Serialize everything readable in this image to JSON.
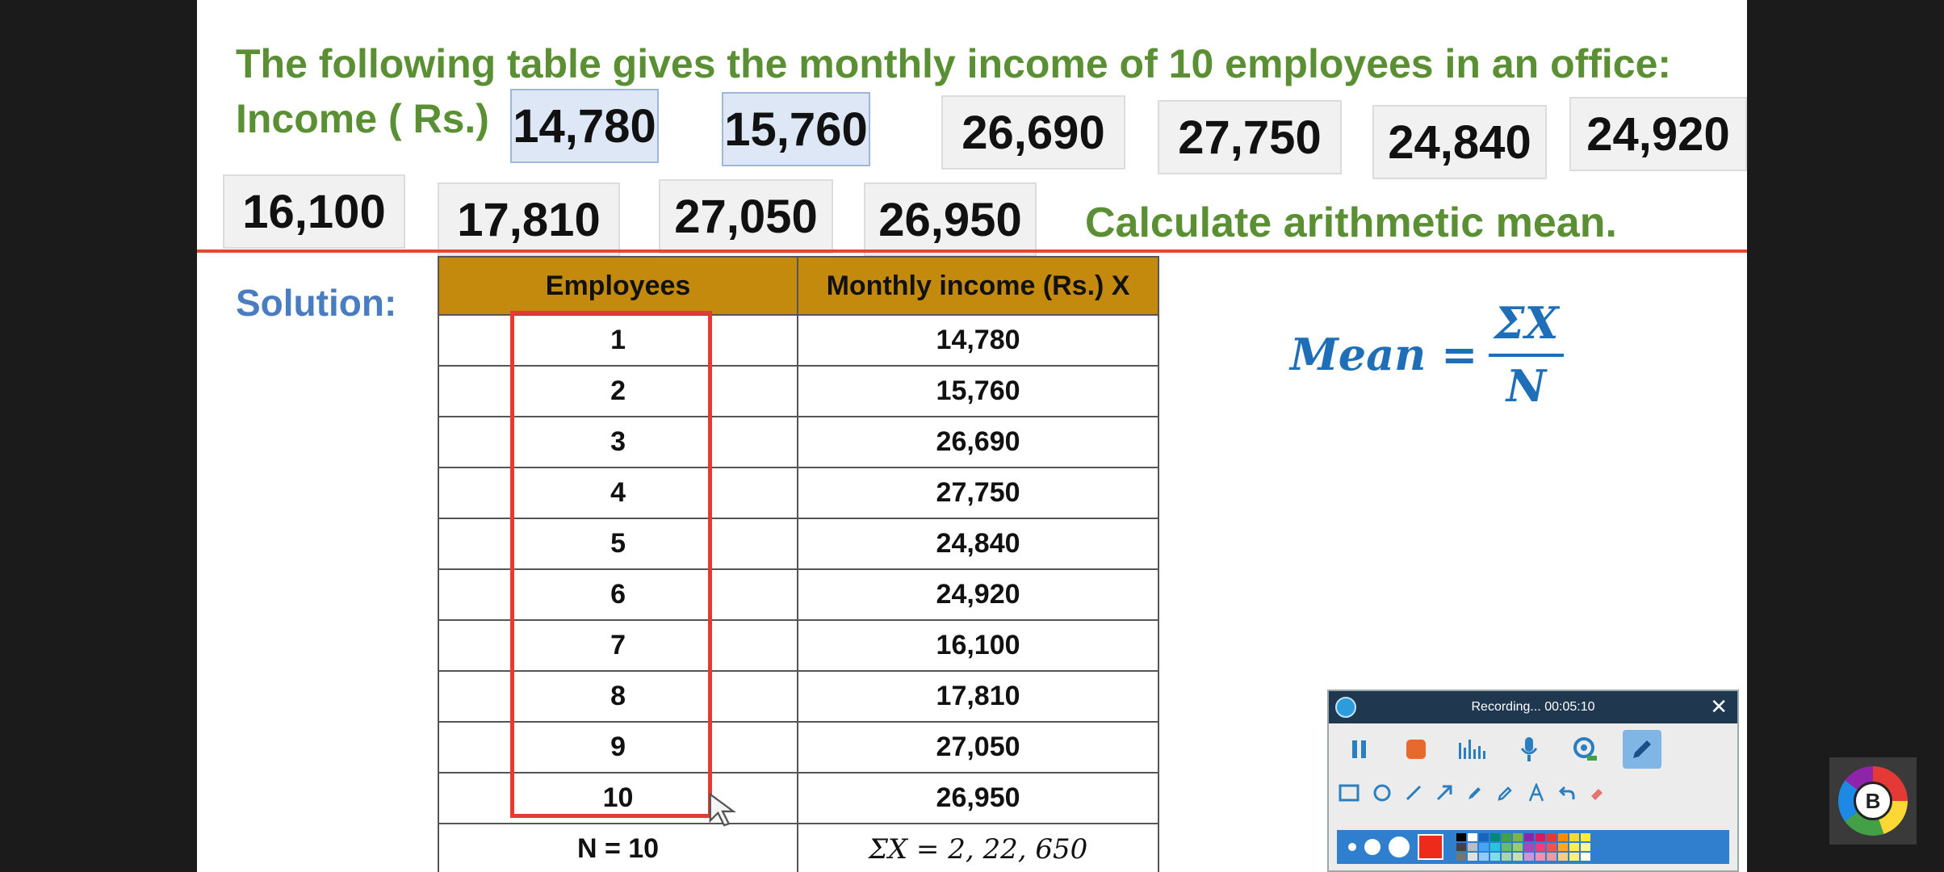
{
  "question": {
    "line1": "The following table gives the monthly income of 10 employees in an office:",
    "income_label": "Income ( Rs.)",
    "incomes": [
      "14,780",
      "15,760",
      "26,690",
      "27,750",
      "24,840",
      "24,920",
      "16,100",
      "17,810",
      "27,050",
      "26,950"
    ],
    "instruction": "Calculate arithmetic mean."
  },
  "solution_label": "Solution:",
  "table": {
    "headers": [
      "Employees",
      "Monthly income (Rs.)  X"
    ],
    "rows": [
      [
        "1",
        "14,780"
      ],
      [
        "2",
        "15,760"
      ],
      [
        "3",
        "26,690"
      ],
      [
        "4",
        "27,750"
      ],
      [
        "5",
        "24,840"
      ],
      [
        "6",
        "24,920"
      ],
      [
        "7",
        "16,100"
      ],
      [
        "8",
        "17,810"
      ],
      [
        "9",
        "27,050"
      ],
      [
        "10",
        "26,950"
      ]
    ],
    "footer": [
      "N = 10",
      "ΣX = 2, 22, 650"
    ]
  },
  "formula": {
    "lhs": "Mean =",
    "numerator": "ΣX",
    "denominator": "N"
  },
  "recorder": {
    "title": "Recording... 00:05:10",
    "close": "✕"
  },
  "badge": {
    "letter": "B"
  },
  "colors": {
    "green": "#5a8f33",
    "blue": "#4a7cc1",
    "header_gold": "#c48a0d",
    "divider_red": "#e2492d"
  }
}
